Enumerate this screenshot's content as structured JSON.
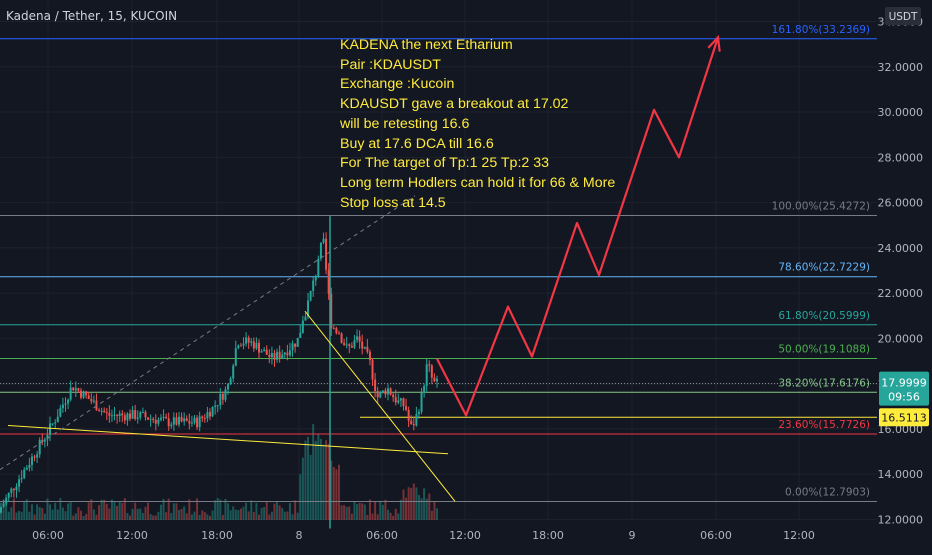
{
  "header": {
    "title": "Kadena / Tether, 15, KUCOIN",
    "currency": "USDT"
  },
  "annotation": {
    "lines": [
      "KADENA the next Etharium",
      "Pair :KDAUSDT",
      "Exchange :Kucoin",
      "KDAUSDT gave a breakout at 17.02",
      "will be retesting 16.6",
      "Buy at 17.6 DCA till 16.6",
      "For The target of Tp:1 25 Tp:2 33",
      "Long term Hodlers can hold it for 66 & More",
      "Stop loss at 14.5"
    ]
  },
  "price_badges": {
    "last_price": "17.9999",
    "countdown": "09:56",
    "entry_price": "16.5113",
    "last_price_color": "#26a69a",
    "entry_color": "#ffeb3b"
  },
  "chart_data": {
    "type": "candlestick",
    "symbol": "KDAUSDT",
    "timeframe": "15",
    "exchange": "KUCOIN",
    "y_axis": {
      "ticks": [
        "12.0000",
        "14.0000",
        "16.0000",
        "18.0000",
        "20.0000",
        "22.0000",
        "24.0000",
        "26.0000",
        "28.0000",
        "30.0000",
        "32.0000",
        "34.0000"
      ],
      "tick_values": [
        12,
        14,
        16,
        18,
        20,
        22,
        24,
        26,
        28,
        30,
        32,
        34
      ],
      "range": [
        11.45,
        34.0
      ]
    },
    "x_axis": {
      "ticks": [
        "06:00",
        "12:00",
        "18:00",
        "8",
        "06:00",
        "12:00",
        "18:00",
        "9",
        "06:00",
        "12:00"
      ]
    },
    "fib_levels": [
      {
        "ratio": "161.80%",
        "price": 33.2369,
        "label": "161.80%(33.2369)",
        "color": "#2962ff"
      },
      {
        "ratio": "100.00%",
        "price": 25.4272,
        "label": "100.00%(25.4272)",
        "color": "#787b86"
      },
      {
        "ratio": "78.60%",
        "price": 22.7229,
        "label": "78.60%(22.7229)",
        "color": "#64b5f6"
      },
      {
        "ratio": "61.80%",
        "price": 20.5999,
        "label": "61.80%(20.5999)",
        "color": "#26a69a"
      },
      {
        "ratio": "50.00%",
        "price": 19.1088,
        "label": "50.00%(19.1088)",
        "color": "#4caf50"
      },
      {
        "ratio": "38.20%",
        "price": 17.6176,
        "label": "38.20%(17.6176)",
        "color": "#81c784"
      },
      {
        "ratio": "23.60%",
        "price": 15.7726,
        "label": "23.60%(15.7726)",
        "color": "#f23645"
      },
      {
        "ratio": "0.00%",
        "price": 12.7903,
        "label": "0.00%(12.7903)",
        "color": "#787b86"
      }
    ],
    "horizontal_lines": [
      {
        "name": "entry-line",
        "price": 16.5113,
        "color": "#ffeb3b"
      },
      {
        "name": "last-price-line",
        "price": 17.9999,
        "color": "#26a69a"
      }
    ],
    "trendlines": [
      {
        "name": "descending-resistance",
        "points": [
          [
            305,
            21.2
          ],
          [
            455,
            12.8
          ]
        ],
        "color": "#ffeb3b"
      },
      {
        "name": "ascending-support",
        "points": [
          [
            8,
            16.15
          ],
          [
            448,
            14.9
          ]
        ],
        "color": "#ffeb3b"
      },
      {
        "name": "dashed-trend",
        "points": [
          [
            0,
            14.2
          ],
          [
            415,
            26.3
          ]
        ],
        "color": "#787b86",
        "dashed": true
      }
    ],
    "projection": {
      "color": "#f23645",
      "points": [
        [
          437,
          19.1
        ],
        [
          466,
          16.6
        ],
        [
          508,
          21.4
        ],
        [
          532,
          19.2
        ],
        [
          577,
          25.1
        ],
        [
          599,
          22.8
        ],
        [
          654,
          30.1
        ],
        [
          679,
          28.0
        ],
        [
          718,
          33.3
        ]
      ]
    },
    "candle_count": 170,
    "colors": {
      "up": "#26a69a",
      "down": "#ef5350"
    }
  }
}
